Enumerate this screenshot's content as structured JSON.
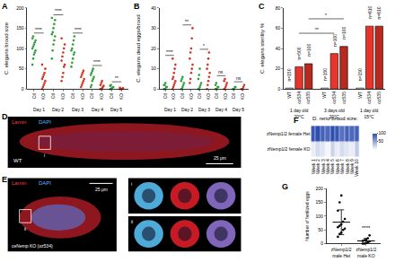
{
  "chart_data": [
    {
      "panel": "A",
      "type": "strip",
      "y_title": "C. elegans brood size",
      "categories": [
        "Day 1",
        "Day 2",
        "Day 3",
        "Day 4",
        "Day 5"
      ],
      "series": [
        {
          "name": "Ctl",
          "color": "#2e9e3a",
          "marker": "circle",
          "values": [
            [
              60,
              75,
              85,
              90,
              95,
              100,
              105,
              110,
              115,
              120,
              125,
              130
            ],
            [
              75,
              95,
              110,
              120,
              130,
              135,
              140,
              150,
              160,
              170,
              175
            ],
            [
              55,
              65,
              75,
              85,
              90,
              95,
              100,
              110,
              120,
              130
            ],
            [
              5,
              10,
              20,
              25,
              30,
              35,
              40,
              45,
              50
            ],
            [
              0,
              0,
              2,
              4,
              5,
              8,
              10
            ]
          ]
        },
        {
          "name": "KO",
          "color": "#d7301f",
          "marker": "circle",
          "values": [
            [
              0,
              5,
              10,
              15,
              20,
              25,
              30,
              35,
              40,
              50,
              60
            ],
            [
              20,
              30,
              40,
              55,
              60,
              70,
              80,
              90,
              100,
              110,
              125
            ],
            [
              5,
              10,
              15,
              20,
              25,
              30,
              35,
              40,
              45
            ],
            [
              0,
              0,
              2,
              5,
              8,
              10,
              15,
              20
            ],
            [
              0,
              0,
              0,
              1,
              2,
              3
            ]
          ]
        }
      ],
      "ylim": [
        0,
        200
      ],
      "yticks": [
        0,
        50,
        100,
        150,
        200
      ],
      "grid": false,
      "significance": [
        "****",
        "****",
        "****",
        "****",
        "**"
      ]
    },
    {
      "panel": "B",
      "type": "strip",
      "y_title": "C. elegans dead eggs/brood",
      "categories": [
        "Day 1",
        "Day 2",
        "Day 3",
        "Day 4",
        "Day 5"
      ],
      "series": [
        {
          "name": "Ctl",
          "color": "#2e9e3a",
          "marker": "circle",
          "values": [
            [
              0,
              0,
              0,
              1,
              1,
              2,
              2,
              3
            ],
            [
              0,
              0,
              1,
              2,
              3,
              4,
              5,
              6
            ],
            [
              0,
              0,
              1,
              2,
              3,
              5,
              7,
              10
            ],
            [
              0,
              0,
              0,
              1,
              1,
              2,
              3
            ],
            [
              0,
              0,
              0,
              1,
              1
            ]
          ]
        },
        {
          "name": "KO",
          "color": "#d7301f",
          "marker": "circle",
          "values": [
            [
              0,
              1,
              2,
              3,
              4,
              5,
              6,
              8,
              10,
              12,
              15
            ],
            [
              3,
              5,
              8,
              10,
              12,
              15,
              18,
              20,
              25,
              30
            ],
            [
              0,
              2,
              4,
              6,
              8,
              10,
              12,
              15,
              18
            ],
            [
              0,
              0,
              1,
              2,
              3,
              4,
              5
            ],
            [
              0,
              0,
              0,
              1,
              2
            ]
          ]
        }
      ],
      "ylim": [
        0,
        40
      ],
      "yticks": [
        0,
        10,
        20,
        30,
        40
      ],
      "grid": false,
      "significance": [
        "****",
        "**",
        "*",
        "ns",
        "ns"
      ]
    },
    {
      "panel": "C",
      "type": "bar",
      "y_title": "C. elegans sterility %",
      "categories": [
        "WT",
        "oz534",
        "oz535",
        "WT",
        "oz534",
        "oz535",
        "WT",
        "oz534",
        "oz535"
      ],
      "groups": [
        "1 day old 20°C",
        "3 days old 20°C",
        "1 day old 15°C"
      ],
      "values": [
        1,
        22,
        25,
        1,
        35,
        42,
        1,
        62,
        62
      ],
      "colors": [
        "#ffffff",
        "#e8352b",
        "#b82a1e",
        "#ffffff",
        "#e8352b",
        "#b82a1e",
        "#ffffff",
        "#e8352b",
        "#b82a1e"
      ],
      "bar_notes": [
        "n=150",
        "n=500",
        "n=100",
        "n=150",
        "n=100",
        "n=100",
        "n=150",
        "n=610",
        "n=610"
      ],
      "brackets": [
        {
          "from": 1,
          "to": 4,
          "text": "**"
        },
        {
          "from": 2,
          "to": 5,
          "text": "*"
        }
      ],
      "ylim": [
        0,
        80
      ],
      "yticks": [
        0,
        20,
        40,
        60,
        80
      ],
      "grid": false
    },
    {
      "panel": "D",
      "type": "image",
      "labels": [
        "Lamin",
        "DAPI"
      ],
      "caption": "WT",
      "scale": "25 μm",
      "inset_mark": "i"
    },
    {
      "panel": "E",
      "type": "image",
      "labels": [
        "Lamin",
        "DAPI"
      ],
      "caption": "ceNemp KO (oz534)",
      "scale": "25 μm",
      "inset_mark": "ii",
      "insets": [
        "i",
        "ii"
      ]
    },
    {
      "panel": "F",
      "type": "heatmap",
      "title": "D. rerio brood size:",
      "x": [
        "Week 1",
        "Week 2",
        "Week 3",
        "Week 4",
        "Week 5",
        "Week 6",
        "Week 7",
        "Week 8",
        "Week 9",
        "Week 10"
      ],
      "rows": [
        "zNemp1/2 female Het",
        "zNemp1/2 female KO"
      ],
      "cells": [
        [
          95,
          100,
          90,
          85,
          100,
          95,
          80,
          90,
          85,
          90
        ],
        [
          10,
          20,
          15,
          5,
          25,
          10,
          20,
          15,
          10,
          30
        ]
      ],
      "color": "#2f4fb0",
      "colorbar_range": [
        0,
        100
      ],
      "colorbar_ticks": [
        50,
        100
      ]
    },
    {
      "panel": "G",
      "type": "scatter",
      "y_title": "Number of fertilized eggs",
      "categories": [
        "zNemp1/2 male Het",
        "zNemp1/2 male KO"
      ],
      "values": [
        [
          25,
          35,
          40,
          50,
          55,
          60,
          65,
          70,
          80,
          90,
          120,
          150,
          175
        ],
        [
          0,
          0,
          2,
          5,
          8,
          10,
          12,
          15,
          20,
          30
        ]
      ],
      "mean": [
        78,
        10
      ],
      "sd": [
        45,
        9
      ],
      "color": "#000000",
      "significance": [
        {
          "category_index": 1,
          "text": "****"
        }
      ],
      "ylim": [
        0,
        200
      ],
      "yticks": [
        0,
        50,
        100,
        150,
        200
      ],
      "grid": false
    }
  ]
}
